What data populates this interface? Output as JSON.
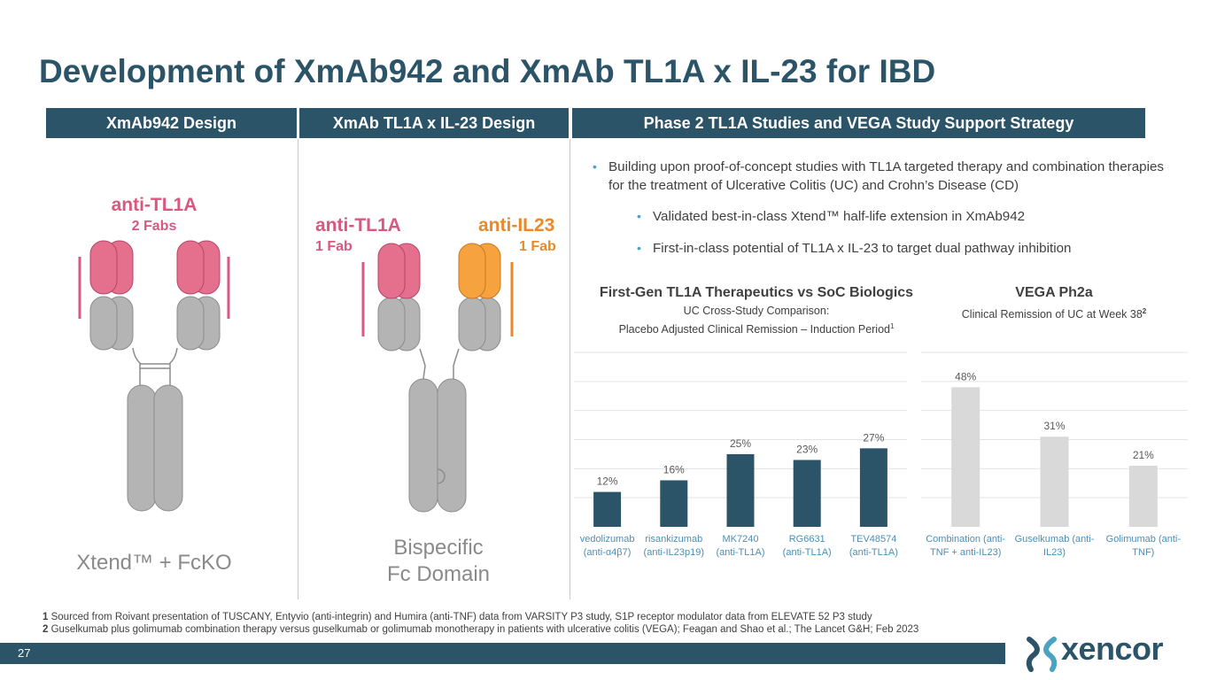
{
  "title": "Development of XmAb942 and XmAb TL1A x IL-23 for IBD",
  "headers": {
    "col1": "XmAb942 Design",
    "col2": "XmAb TL1A x IL-23 Design",
    "col3": "Phase 2 TL1A Studies and VEGA Study Support Strategy"
  },
  "xmab942": {
    "label": "anti-TL1A",
    "sublabel": "2 Fabs",
    "caption": "Xtend™ + FcKO"
  },
  "bispecific": {
    "left_label": "anti-TL1A",
    "left_sub": "1 Fab",
    "right_label": "anti-IL23",
    "right_sub": "1 Fab",
    "caption_line1": "Bispecific",
    "caption_line2": "Fc Domain"
  },
  "bullets": {
    "main": "Building upon proof-of-concept studies with TL1A targeted therapy and combination therapies for the treatment of Ulcerative Colitis (UC) and Crohn’s Disease (CD)",
    "sub1": "Validated best-in-class Xtend™ half-life extension in XmAb942",
    "sub2": "First-in-class potential of TL1A x IL-23 to target dual pathway inhibition"
  },
  "chart1_text": {
    "title": "First-Gen TL1A Therapeutics vs SoC Biologics",
    "sub1": "UC Cross-Study Comparison:",
    "sub2": "Placebo Adjusted Clinical Remission – Induction Period",
    "sup": "1"
  },
  "chart2_text": {
    "title": "VEGA Ph2a",
    "sub1": "Clinical Remission of UC at Week 38",
    "sup": "2"
  },
  "colors": {
    "navy": "#2b5468",
    "pink": "#d9587f",
    "orange": "#e8892a",
    "light_bar": "#d9d9d9",
    "tick_label": "#4a8fb8"
  },
  "chart_data": [
    {
      "type": "bar",
      "title": "First-Gen TL1A Therapeutics vs SoC Biologics",
      "categories": [
        [
          "vedolizumab",
          "(anti-α4β7)"
        ],
        [
          "risankizumab",
          "(anti-IL23p19)"
        ],
        [
          "MK7240",
          "(anti-TL1A)"
        ],
        [
          "RG6631",
          "(anti-TL1A)"
        ],
        [
          "TEV48574",
          "(anti-TL1A)"
        ]
      ],
      "values": [
        12,
        16,
        25,
        23,
        27
      ],
      "labels": [
        "12%",
        "16%",
        "25%",
        "23%",
        "27%"
      ],
      "ylim": [
        0,
        60
      ],
      "grid": true,
      "color": "#2b5468"
    },
    {
      "type": "bar",
      "title": "VEGA Ph2a",
      "categories": [
        [
          "Combination (anti-",
          "TNF + anti-IL23)"
        ],
        [
          "Guselkumab (anti-",
          "IL23)"
        ],
        [
          "Golimumab (anti-",
          "TNF)"
        ]
      ],
      "values": [
        48,
        31,
        21
      ],
      "labels": [
        "48%",
        "31%",
        "21%"
      ],
      "ylim": [
        0,
        60
      ],
      "grid": true,
      "color": "#d9d9d9"
    }
  ],
  "footnotes": {
    "n1_num": "1",
    "n1_text": " Sourced from Roivant presentation of TUSCANY, Entyvio (anti-integrin) and Humira (anti-TNF) data from VARSITY P3 study, S1P receptor modulator data from ELEVATE 52 P3 study",
    "n2_num": "2",
    "n2_text": " Guselkumab plus golimumab combination therapy versus guselkumab or golimumab monotherapy in patients with ulcerative colitis (VEGA); Feagan and Shao et al.; The Lancet G&H; Feb 2023"
  },
  "page_number": "27",
  "logo": "xencor"
}
